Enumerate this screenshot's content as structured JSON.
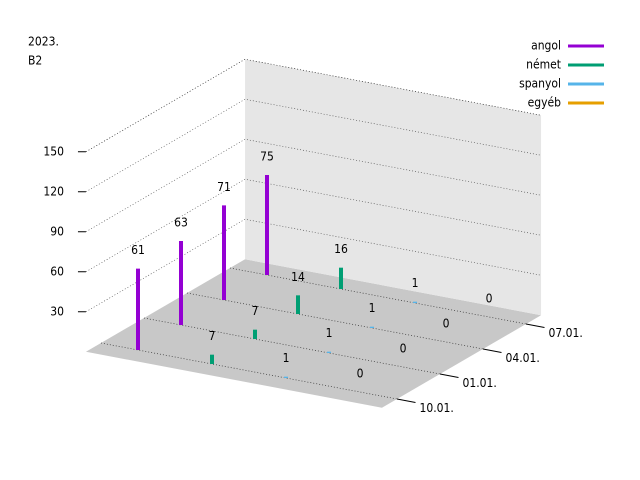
{
  "chart_data": {
    "type": "bar3d",
    "title": "2023.",
    "subtitle": "B2",
    "categories": [
      "10.01.",
      "01.01.",
      "04.01.",
      "07.01."
    ],
    "series": [
      {
        "name": "angol",
        "color": "#9400d3",
        "values": [
          61,
          63,
          71,
          75
        ]
      },
      {
        "name": "német",
        "color": "#009e73",
        "values": [
          7,
          7,
          14,
          16
        ]
      },
      {
        "name": "spanyol",
        "color": "#56b4e9",
        "values": [
          1,
          1,
          1,
          1
        ]
      },
      {
        "name": "egyéb",
        "color": "#e69f00",
        "values": [
          0,
          0,
          0,
          0
        ]
      }
    ],
    "zlim": [
      0,
      150
    ],
    "zticks": [
      30,
      60,
      90,
      120,
      150
    ],
    "grid": true,
    "legend": "top-right"
  }
}
